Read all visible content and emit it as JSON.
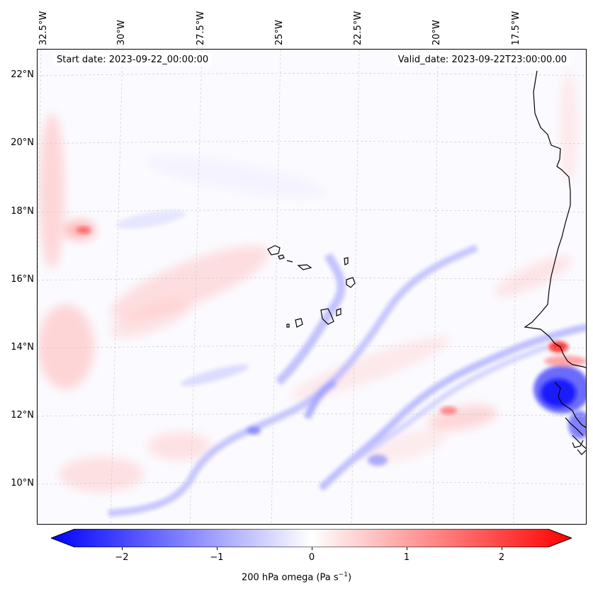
{
  "header": {
    "start_date": "Start date: 2023-09-22_00:00:00",
    "valid_date": "Valid_date: 2023-09-22T23:00:00.00"
  },
  "longitude_labels": [
    "32.5°W",
    "30°W",
    "27.5°W",
    "25°W",
    "22.5°W",
    "20°W",
    "17.5°W"
  ],
  "latitude_labels": [
    "22°N",
    "20°N",
    "18°N",
    "16°N",
    "14°N",
    "12°N",
    "10°N"
  ],
  "colorbar": {
    "label": "200 hPa omega (Pa s",
    "label_sup": "−1",
    "label_close": ")",
    "ticks": [
      "−2",
      "−1",
      "0",
      "1",
      "2"
    ],
    "tick_values": [
      -2,
      -1,
      0,
      1,
      2
    ],
    "range": [
      -2.5,
      2.5
    ],
    "min_color": "#0000ff",
    "mid_color": "#ffffff",
    "max_color": "#ff0000"
  },
  "colors": {
    "coastline": "#000000",
    "gridline": "#cccccc",
    "positive": "#ff0000",
    "negative": "#0000ff"
  }
}
